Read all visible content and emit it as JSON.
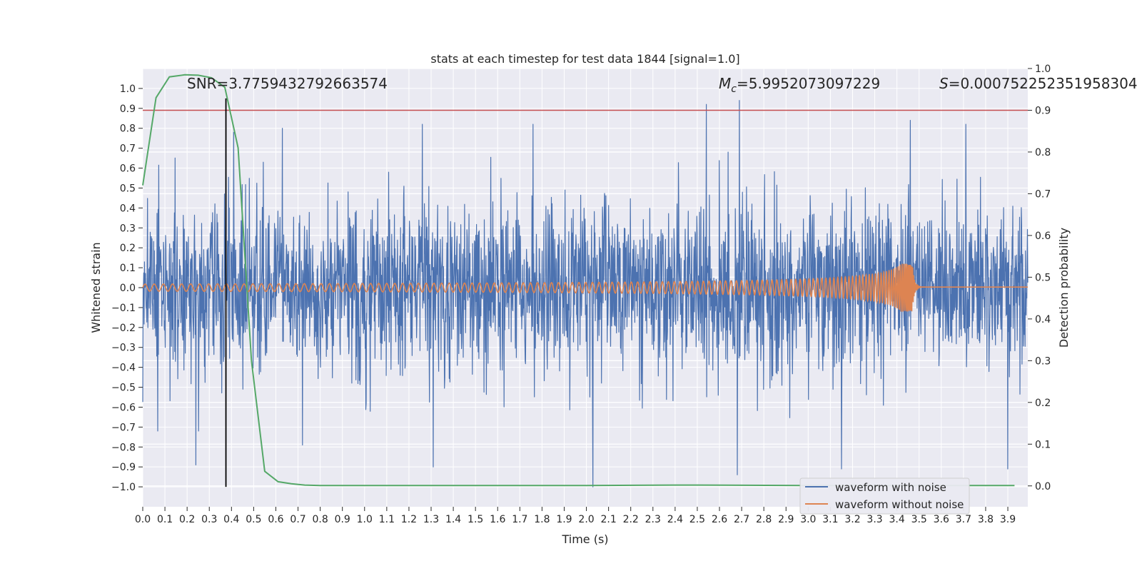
{
  "chart_data": {
    "type": "line",
    "title": "stats at each timestep for test data 1844 [signal=1.0]",
    "xlabel": "Time (s)",
    "ylabel": "Whitened strain",
    "y2label": "Detection probability",
    "xlim": [
      0.0,
      3.99
    ],
    "ylim": [
      -1.1,
      1.1
    ],
    "y2lim": [
      -0.05,
      1.0
    ],
    "x_ticks": [
      0.0,
      0.1,
      0.2,
      0.3,
      0.4,
      0.5,
      0.6,
      0.7,
      0.8,
      0.9,
      1.0,
      1.1,
      1.2,
      1.3,
      1.4,
      1.5,
      1.6,
      1.7,
      1.8,
      1.9,
      2.0,
      2.1,
      2.2,
      2.3,
      2.4,
      2.5,
      2.6,
      2.7,
      2.8,
      2.9,
      3.0,
      3.1,
      3.2,
      3.3,
      3.4,
      3.5,
      3.6,
      3.7,
      3.8,
      3.9
    ],
    "x_tick_labels": [
      "0.0",
      "0.1",
      "0.2",
      "0.3",
      "0.4",
      "0.5",
      "0.6",
      "0.7",
      "0.8",
      "0.9",
      "1.0",
      "1.1",
      "1.2",
      "1.3",
      "1.4",
      "1.5",
      "1.6",
      "1.7",
      "1.8",
      "1.9",
      "2.0",
      "2.1",
      "2.2",
      "2.3",
      "2.4",
      "2.5",
      "2.6",
      "2.7",
      "2.8",
      "2.9",
      "3.0",
      "3.1",
      "3.2",
      "3.3",
      "3.4",
      "3.5",
      "3.6",
      "3.7",
      "3.8",
      "3.9"
    ],
    "y_ticks": [
      1.0,
      0.9,
      0.8,
      0.7,
      0.6,
      0.5,
      0.4,
      0.3,
      0.2,
      0.1,
      0.0,
      -0.1,
      -0.2,
      -0.3,
      -0.4,
      -0.5,
      -0.6,
      -0.7,
      -0.8,
      -0.9,
      -1.0
    ],
    "y_tick_labels": [
      "1.0",
      "0.9",
      "0.8",
      "0.7",
      "0.6",
      "0.5",
      "0.4",
      "0.3",
      "0.2",
      "0.1",
      "0.0",
      "−0.1",
      "−0.2",
      "−0.3",
      "−0.4",
      "−0.5",
      "−0.6",
      "−0.7",
      "−0.8",
      "−0.9",
      "−1.0"
    ],
    "y2_ticks": [
      1.0,
      0.9,
      0.8,
      0.7,
      0.6,
      0.5,
      0.4,
      0.3,
      0.2,
      0.1,
      0.0
    ],
    "y2_tick_labels": [
      "1.0",
      "0.9",
      "0.8",
      "0.7",
      "0.6",
      "0.5",
      "0.4",
      "0.3",
      "0.2",
      "0.1",
      "0.0"
    ],
    "grid": true,
    "annotations": {
      "snr": "SNR=3.7759432792663574",
      "mc_symbol": "M",
      "mc_sub": "c",
      "mc_value": "=5.9952073097229",
      "s_symbol": "S",
      "s_value": "=0.000752252351958304"
    },
    "threshold": {
      "value": 0.9,
      "axis": "right",
      "color": "#c44e52"
    },
    "marker_line": {
      "x": 0.375,
      "y_range": [
        -1.0,
        0.95
      ],
      "color": "#000000"
    },
    "series": [
      {
        "name": "waveform with noise",
        "color": "#4c72b0",
        "kind": "noise",
        "amplitude_typical": 0.35,
        "min": -1.0,
        "max": 0.95,
        "peaks": [
          {
            "x": 0.375,
            "y": 0.74
          },
          {
            "x": 0.41,
            "y": 0.78
          },
          {
            "x": 0.63,
            "y": 0.8
          },
          {
            "x": 1.26,
            "y": 0.82
          },
          {
            "x": 1.31,
            "y": 0.94
          },
          {
            "x": 1.76,
            "y": 0.82
          },
          {
            "x": 2.54,
            "y": 0.92
          },
          {
            "x": 2.69,
            "y": 0.94
          },
          {
            "x": 3.46,
            "y": 0.84
          },
          {
            "x": 3.71,
            "y": 0.82
          },
          {
            "x": 0.24,
            "y": -0.89
          },
          {
            "x": 0.72,
            "y": -0.79
          },
          {
            "x": 1.31,
            "y": -0.9
          },
          {
            "x": 2.03,
            "y": -1.0
          },
          {
            "x": 2.68,
            "y": -0.94
          },
          {
            "x": 3.15,
            "y": -0.91
          },
          {
            "x": 3.9,
            "y": -0.91
          }
        ]
      },
      {
        "name": "waveform without noise",
        "color": "#dd8452",
        "kind": "chirp",
        "merger_time": 3.47,
        "base_amplitude": 0.018,
        "peak_amplitude": 0.12,
        "ringdown_level": 0.003
      },
      {
        "name": "detection probability",
        "color": "#55a868",
        "axis": "right",
        "x": [
          0.0,
          0.06,
          0.12,
          0.19,
          0.25,
          0.31,
          0.37,
          0.43,
          0.49,
          0.55,
          0.61,
          0.67,
          0.73,
          0.8,
          1.0,
          1.5,
          2.0,
          2.4,
          2.5,
          3.0,
          3.5,
          3.93
        ],
        "y": [
          0.72,
          0.93,
          0.98,
          0.985,
          0.984,
          0.978,
          0.955,
          0.81,
          0.3,
          0.035,
          0.01,
          0.005,
          0.002,
          0.001,
          0.001,
          0.001,
          0.001,
          0.002,
          0.002,
          0.001,
          0.001,
          0.001
        ]
      }
    ],
    "legend": {
      "position": "lower-right",
      "entries": [
        {
          "label": "waveform with noise",
          "color": "#4c72b0"
        },
        {
          "label": "waveform without noise",
          "color": "#dd8452"
        }
      ]
    },
    "colors": {
      "plot_bg": "#eaeaf2",
      "grid": "#ffffff",
      "text": "#262626",
      "legend_bg": "#eaeaf2",
      "legend_border": "#cccccc"
    }
  }
}
